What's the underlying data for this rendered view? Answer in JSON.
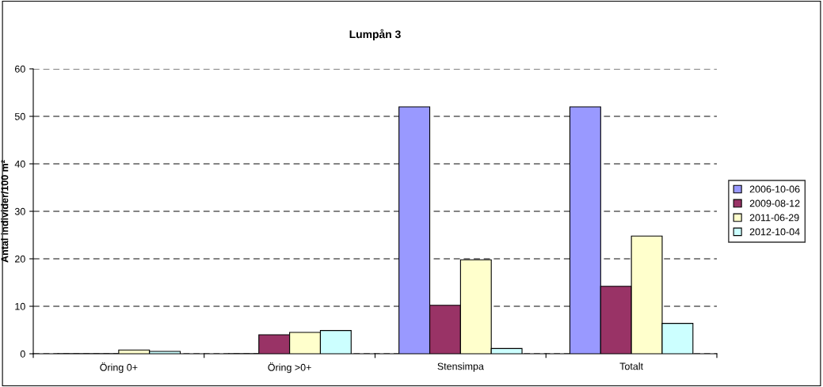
{
  "chart_data": {
    "type": "bar",
    "title": "Lumpån 3",
    "ylabel": "Antal individer/100 m²",
    "categories": [
      "Öring 0+",
      "Öring >0+",
      "Stensimpa",
      "Totalt"
    ],
    "series": [
      {
        "name": "2006-10-06",
        "color": "#9999ff",
        "values": [
          0,
          0,
          52,
          52
        ]
      },
      {
        "name": "2009-08-12",
        "color": "#993366",
        "values": [
          0,
          4.0,
          10.2,
          14.2
        ]
      },
      {
        "name": "2011-06-29",
        "color": "#ffffcc",
        "values": [
          0.8,
          4.5,
          19.8,
          24.8
        ]
      },
      {
        "name": "2012-10-04",
        "color": "#ccffff",
        "values": [
          0.5,
          4.9,
          1.1,
          6.4
        ]
      }
    ],
    "ylim": [
      0,
      60
    ],
    "yticks": [
      0,
      10,
      20,
      30,
      40,
      50,
      60
    ],
    "grid": "y",
    "legend": "right"
  }
}
